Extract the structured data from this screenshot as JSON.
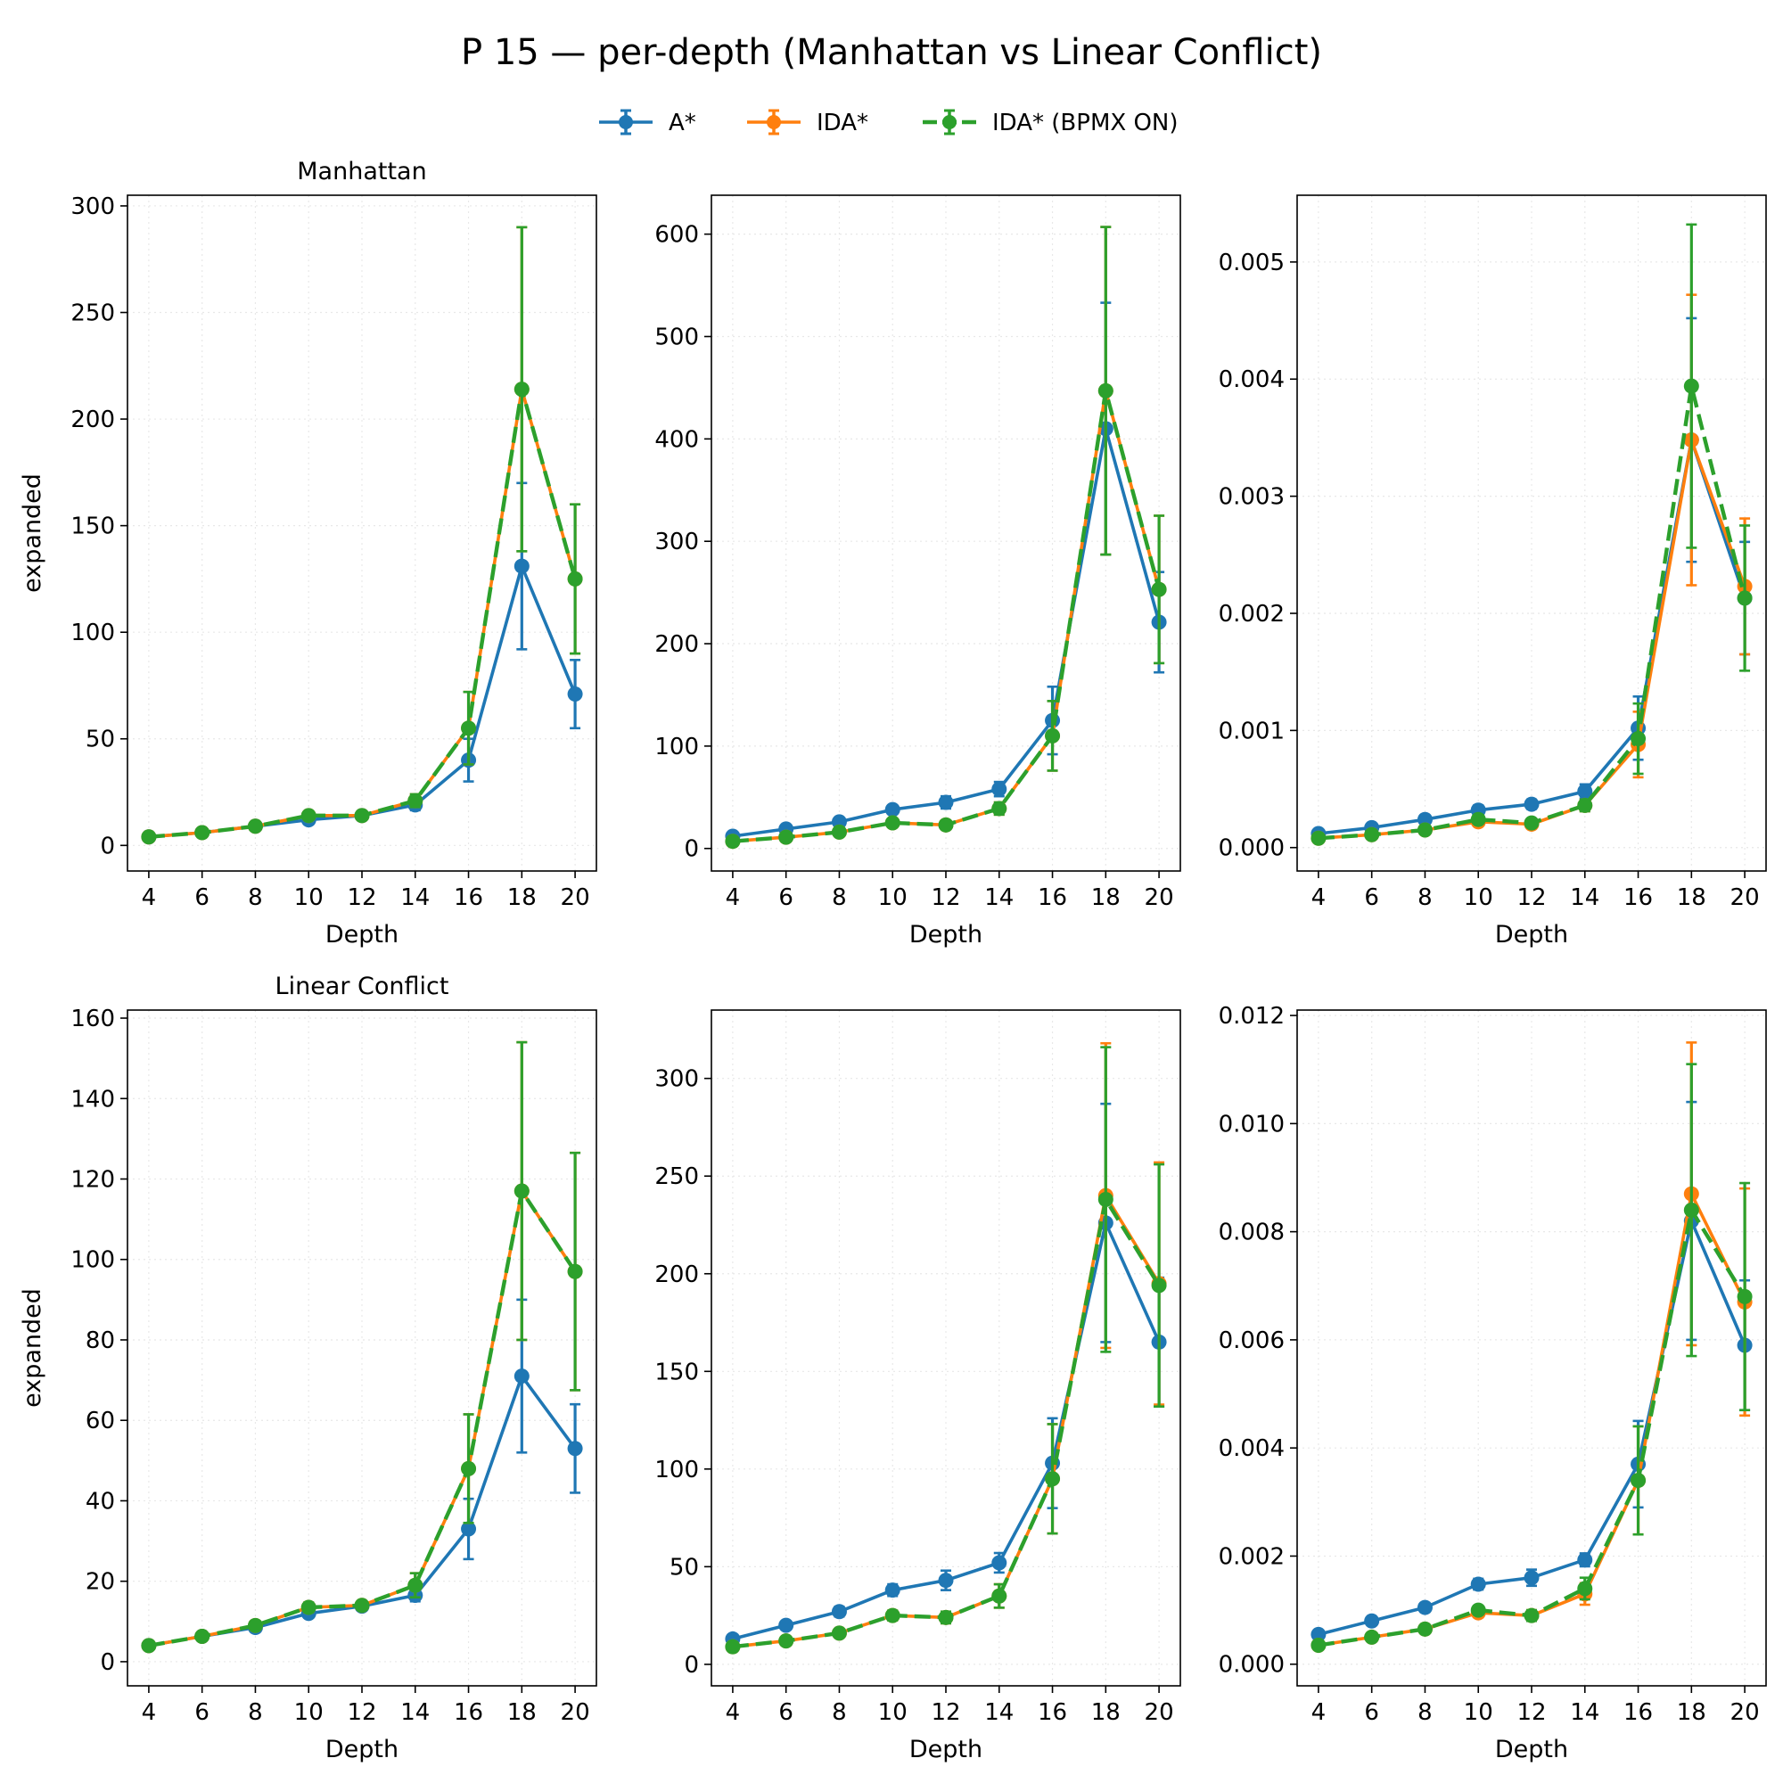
{
  "title": "P 15 — per-depth (Manhattan vs Linear Conflict)",
  "colors": {
    "astar": "#1f77b4",
    "ida": "#ff7f0e",
    "bpmx": "#2ca02c",
    "grid": "#e8e8e8"
  },
  "legend": {
    "placement": "top-center",
    "items": [
      {
        "label": "A*",
        "color": "#1f77b4",
        "dash": false
      },
      {
        "label": "IDA*",
        "color": "#ff7f0e",
        "dash": false
      },
      {
        "label": "IDA* (BPMX ON)",
        "color": "#2ca02c",
        "dash": true
      }
    ]
  },
  "chart_data": [
    {
      "type": "line",
      "title": "Manhattan",
      "xlabel": "Depth",
      "ylabel": "expanded",
      "x": [
        4,
        6,
        8,
        10,
        12,
        14,
        16,
        18,
        20
      ],
      "ylim": [
        -12,
        305
      ],
      "yticks": [
        0,
        50,
        100,
        150,
        200,
        250,
        300
      ],
      "ytick_labels": [
        "0",
        "50",
        "100",
        "150",
        "200",
        "250",
        "300"
      ],
      "grid": true,
      "series": [
        {
          "name": "A*",
          "values": [
            4,
            6,
            9,
            12,
            14,
            19,
            40,
            131,
            71
          ],
          "err": [
            0.5,
            0.6,
            1,
            1.5,
            1.5,
            2.5,
            10,
            39,
            16
          ]
        },
        {
          "name": "IDA*",
          "values": [
            4,
            6,
            9,
            14,
            14,
            21,
            55,
            214,
            125
          ],
          "err": [
            0.5,
            0.6,
            1,
            1.5,
            1.5,
            3,
            17,
            76,
            35
          ]
        },
        {
          "name": "IDA* (BPMX ON)",
          "values": [
            4,
            6,
            9,
            14,
            14,
            21,
            55,
            214,
            125
          ],
          "err": [
            0.5,
            0.6,
            1,
            1.5,
            1.5,
            3,
            17,
            76,
            35
          ]
        }
      ]
    },
    {
      "type": "line",
      "title": "",
      "xlabel": "Depth",
      "ylabel": "",
      "x": [
        4,
        6,
        8,
        10,
        12,
        14,
        16,
        18,
        20
      ],
      "ylim": [
        -22,
        638
      ],
      "yticks": [
        0,
        100,
        200,
        300,
        400,
        500,
        600
      ],
      "ytick_labels": [
        "0",
        "100",
        "200",
        "300",
        "400",
        "500",
        "600"
      ],
      "grid": true,
      "series": [
        {
          "name": "A*",
          "values": [
            12,
            19,
            26,
            38,
            45,
            58,
            125,
            410,
            221
          ],
          "err": [
            2,
            2.5,
            3,
            4,
            6,
            7,
            33,
            123,
            49
          ]
        },
        {
          "name": "IDA*",
          "values": [
            7,
            11,
            16,
            25,
            23,
            39,
            110,
            447,
            253
          ],
          "err": [
            1,
            1.5,
            2,
            3,
            4,
            6,
            34,
            160,
            72
          ]
        },
        {
          "name": "IDA* (BPMX ON)",
          "values": [
            7,
            11,
            16,
            25,
            23,
            39,
            110,
            447,
            253
          ],
          "err": [
            1,
            1.5,
            2,
            3,
            4,
            6,
            34,
            160,
            72
          ]
        }
      ]
    },
    {
      "type": "line",
      "title": "",
      "xlabel": "Depth",
      "ylabel": "",
      "x": [
        4,
        6,
        8,
        10,
        12,
        14,
        16,
        18,
        20
      ],
      "ylim": [
        -0.0002,
        0.00557
      ],
      "yticks": [
        0,
        0.001,
        0.002,
        0.003,
        0.004,
        0.005
      ],
      "ytick_labels": [
        "0.000",
        "0.001",
        "0.002",
        "0.003",
        "0.004",
        "0.005"
      ],
      "grid": true,
      "series": [
        {
          "name": "A*",
          "values": [
            0.00012,
            0.00017,
            0.00024,
            0.00032,
            0.00037,
            0.00048,
            0.00102,
            0.00348,
            0.00213
          ],
          "err": [
            2e-05,
            2e-05,
            3e-05,
            4e-05,
            4e-05,
            6e-05,
            0.00027,
            0.00104,
            0.00048
          ]
        },
        {
          "name": "IDA*",
          "values": [
            8e-05,
            0.00011,
            0.00015,
            0.00022,
            0.0002,
            0.00036,
            0.00088,
            0.00348,
            0.00223
          ],
          "err": [
            1e-05,
            2e-05,
            2e-05,
            3e-05,
            3e-05,
            5e-05,
            0.00028,
            0.00124,
            0.00058
          ]
        },
        {
          "name": "IDA* (BPMX ON)",
          "values": [
            8e-05,
            0.00011,
            0.00015,
            0.00024,
            0.00021,
            0.00036,
            0.00093,
            0.00394,
            0.00213
          ],
          "err": [
            1e-05,
            2e-05,
            2e-05,
            3e-05,
            3e-05,
            5e-05,
            0.0003,
            0.00138,
            0.00062
          ]
        }
      ]
    },
    {
      "type": "line",
      "title": "Linear Conflict",
      "xlabel": "Depth",
      "ylabel": "expanded",
      "x": [
        4,
        6,
        8,
        10,
        12,
        14,
        16,
        18,
        20
      ],
      "ylim": [
        -6,
        162
      ],
      "yticks": [
        0,
        20,
        40,
        60,
        80,
        100,
        120,
        140,
        160
      ],
      "ytick_labels": [
        "0",
        "20",
        "40",
        "60",
        "80",
        "100",
        "120",
        "140",
        "160"
      ],
      "grid": true,
      "series": [
        {
          "name": "A*",
          "values": [
            4,
            6.3,
            8.5,
            12,
            13.8,
            16.5,
            33,
            71,
            53
          ],
          "err": [
            0.4,
            0.5,
            0.8,
            1,
            1,
            1.5,
            7.5,
            19,
            11
          ]
        },
        {
          "name": "IDA*",
          "values": [
            4,
            6.3,
            9,
            13.5,
            14,
            19,
            48,
            117,
            97
          ],
          "err": [
            0.4,
            0.5,
            0.8,
            1.2,
            1,
            3,
            13.5,
            37,
            29.5
          ]
        },
        {
          "name": "IDA* (BPMX ON)",
          "values": [
            4,
            6.3,
            9,
            13.5,
            14,
            19,
            48,
            117,
            97
          ],
          "err": [
            0.4,
            0.5,
            0.8,
            1.2,
            1,
            3,
            13.5,
            37,
            29.5
          ]
        }
      ]
    },
    {
      "type": "line",
      "title": "",
      "xlabel": "Depth",
      "ylabel": "",
      "x": [
        4,
        6,
        8,
        10,
        12,
        14,
        16,
        18,
        20
      ],
      "ylim": [
        -11,
        335
      ],
      "yticks": [
        0,
        50,
        100,
        150,
        200,
        250,
        300
      ],
      "ytick_labels": [
        "0",
        "50",
        "100",
        "150",
        "200",
        "250",
        "300"
      ],
      "grid": true,
      "series": [
        {
          "name": "A*",
          "values": [
            13,
            20,
            27,
            38,
            43,
            52,
            103,
            226,
            165
          ],
          "err": [
            1.5,
            2,
            2.5,
            3,
            5,
            5,
            23,
            61,
            33
          ]
        },
        {
          "name": "IDA*",
          "values": [
            9,
            12,
            16,
            25,
            24,
            35,
            95,
            240,
            195
          ],
          "err": [
            1,
            1.5,
            2,
            2.5,
            3,
            6,
            28,
            78,
            62
          ]
        },
        {
          "name": "IDA* (BPMX ON)",
          "values": [
            9,
            12,
            16,
            25,
            24,
            35,
            95,
            238,
            194
          ],
          "err": [
            1,
            1.5,
            2,
            2.5,
            3,
            6,
            28,
            78,
            62
          ]
        }
      ]
    },
    {
      "type": "line",
      "title": "",
      "xlabel": "Depth",
      "ylabel": "",
      "x": [
        4,
        6,
        8,
        10,
        12,
        14,
        16,
        18,
        20
      ],
      "ylim": [
        -0.0004,
        0.0121
      ],
      "yticks": [
        0,
        0.002,
        0.004,
        0.006,
        0.008,
        0.01,
        0.012
      ],
      "ytick_labels": [
        "0.000",
        "0.002",
        "0.004",
        "0.006",
        "0.008",
        "0.010",
        "0.012"
      ],
      "grid": true,
      "series": [
        {
          "name": "A*",
          "values": [
            0.00055,
            0.0008,
            0.00105,
            0.00148,
            0.0016,
            0.00193,
            0.0037,
            0.0082,
            0.0059
          ],
          "err": [
            5e-05,
            6e-05,
            8e-05,
            0.0001,
            0.00015,
            0.00012,
            0.0008,
            0.0022,
            0.0012
          ]
        },
        {
          "name": "IDA*",
          "values": [
            0.00035,
            0.0005,
            0.00065,
            0.00095,
            0.0009,
            0.0013,
            0.0034,
            0.0087,
            0.0067
          ],
          "err": [
            4e-05,
            5e-05,
            6e-05,
            8e-05,
            0.0001,
            0.0002,
            0.001,
            0.0028,
            0.0021
          ]
        },
        {
          "name": "IDA* (BPMX ON)",
          "values": [
            0.00035,
            0.0005,
            0.00065,
            0.001,
            0.0009,
            0.0014,
            0.0034,
            0.0084,
            0.0068
          ],
          "err": [
            4e-05,
            5e-05,
            6e-05,
            8e-05,
            0.0001,
            0.0002,
            0.001,
            0.0027,
            0.0021
          ]
        }
      ]
    }
  ]
}
